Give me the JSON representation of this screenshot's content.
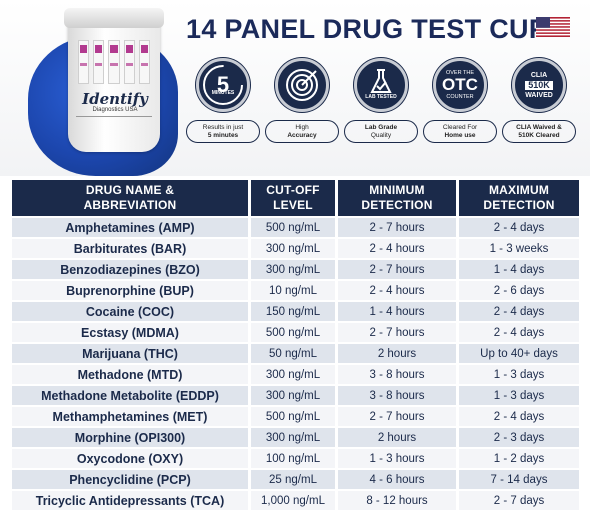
{
  "header": {
    "title": "14 PANEL DRUG TEST CUP",
    "brand": "Identify",
    "brand_sub": "Diagnostics USA",
    "flag_icon": "us-flag-icon"
  },
  "colors": {
    "navy": "#1b2a4a",
    "row_shade": "#dfe4ec",
    "row_light": "#f4f5f8",
    "glove": "#1c46ad"
  },
  "badges": [
    {
      "icon": "timer-icon",
      "circle_text": "5",
      "circle_sub": "MINUTES",
      "caption_line1": "Results in just",
      "caption_line2": "5 minutes"
    },
    {
      "icon": "target-icon",
      "circle_text": "",
      "circle_sub": "",
      "caption_line1": "High",
      "caption_line2": "Accuracy"
    },
    {
      "icon": "flask-icon",
      "circle_text": "",
      "circle_sub": "LAB TESTED",
      "caption_line1": "Lab Grade",
      "caption_line2": "Quality"
    },
    {
      "icon": "otc-icon",
      "circle_top": "OVER THE",
      "circle_text": "OTC",
      "circle_sub": "COUNTER",
      "caption_line1": "Cleared For",
      "caption_line2": "Home use"
    },
    {
      "icon": "clia-icon",
      "circle_top": "CLIA",
      "circle_text": "510K",
      "circle_sub": "WAIVED",
      "caption_line1": "CLIA Waived &",
      "caption_line2": "510K Cleared"
    }
  ],
  "table": {
    "headers": [
      [
        "DRUG NAME &",
        "ABBREVIATION"
      ],
      [
        "CUT-OFF",
        "LEVEL"
      ],
      [
        "MINIMUM",
        "DETECTION"
      ],
      [
        "MAXIMUM",
        "DETECTION"
      ]
    ],
    "rows": [
      [
        "Amphetamines (AMP)",
        "500 ng/mL",
        "2 - 7 hours",
        "2 - 4 days"
      ],
      [
        "Barbiturates (BAR)",
        "300 ng/mL",
        "2 - 4 hours",
        "1 - 3 weeks"
      ],
      [
        "Benzodiazepines (BZO)",
        "300 ng/mL",
        "2 - 7 hours",
        "1 - 4 days"
      ],
      [
        "Buprenorphine (BUP)",
        "10 ng/mL",
        "2 - 4 hours",
        "2 - 6 days"
      ],
      [
        "Cocaine (COC)",
        "150 ng/mL",
        "1 - 4 hours",
        "2 - 4 days"
      ],
      [
        "Ecstasy (MDMA)",
        "500 ng/mL",
        "2 - 7 hours",
        "2 - 4 days"
      ],
      [
        "Marijuana (THC)",
        "50 ng/mL",
        "2 hours",
        "Up to 40+ days"
      ],
      [
        "Methadone (MTD)",
        "300 ng/mL",
        "3 - 8 hours",
        "1 - 3 days"
      ],
      [
        "Methadone Metabolite (EDDP)",
        "300 ng/mL",
        "3 - 8 hours",
        "1 - 3 days"
      ],
      [
        "Methamphetamines (MET)",
        "500 ng/mL",
        "2 - 7 hours",
        "2 - 4 days"
      ],
      [
        "Morphine (OPI300)",
        "300 ng/mL",
        "2 hours",
        "2 - 3 days"
      ],
      [
        "Oxycodone (OXY)",
        "100 ng/mL",
        "1 - 3 hours",
        "1 - 2 days"
      ],
      [
        "Phencyclidine (PCP)",
        "25 ng/mL",
        "4 - 6 hours",
        "7 - 14 days"
      ],
      [
        "Tricyclic Antidepressants (TCA)",
        "1,000 ng/mL",
        "8 - 12 hours",
        "2 - 7 days"
      ]
    ]
  }
}
